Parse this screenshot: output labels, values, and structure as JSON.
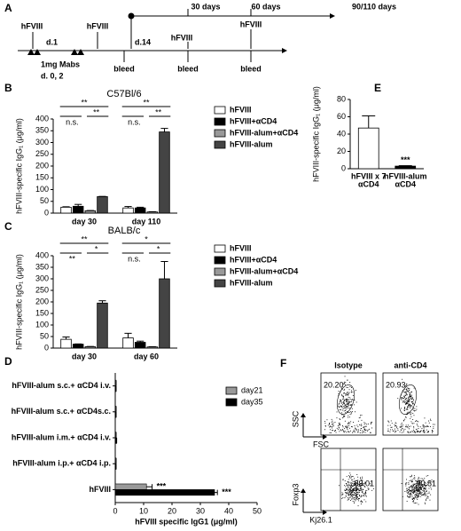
{
  "panel_labels": [
    "A",
    "B",
    "C",
    "D",
    "E",
    "F"
  ],
  "timeline": {
    "top_labels": [
      "30 days",
      "60 days",
      "90/110 days"
    ],
    "injections": [
      "hFVIII",
      "hFVIII",
      "hFVIII",
      "hFVIII"
    ],
    "days": [
      "d.1",
      "d.14"
    ],
    "mabs": [
      "1mg Mabs",
      "d. 0, 2"
    ],
    "bleeds": [
      "bleed",
      "bleed",
      "bleed"
    ]
  },
  "chart_data": [
    {
      "type": "bar",
      "title": "C57Bl/6",
      "y_label": "hFVIII-specific IgG₁ (μg/ml)",
      "categories": [
        "day 30",
        "day 110"
      ],
      "ylim": [
        0,
        400
      ],
      "yticks": [
        0,
        50,
        100,
        150,
        200,
        250,
        300,
        350,
        400
      ],
      "series": [
        {
          "name": "hFVIII",
          "color": "#ffffff",
          "values": [
            25,
            22
          ],
          "errors": [
            2,
            6
          ]
        },
        {
          "name": "hFVIII+αCD4",
          "color": "#000000",
          "values": [
            29,
            22
          ],
          "errors": [
            8,
            3
          ]
        },
        {
          "name": "hFVIII-alum+αCD4",
          "color": "#999999",
          "values": [
            10,
            5
          ],
          "errors": [
            1,
            1
          ]
        },
        {
          "name": "hFVIII-alum",
          "color": "#444444",
          "values": [
            70,
            345
          ],
          "errors": [
            1,
            15
          ]
        }
      ],
      "significance": [
        [
          "**",
          "n.s.",
          "**"
        ],
        [
          "**",
          "n.s.",
          "**"
        ]
      ]
    },
    {
      "type": "bar",
      "title": "BALB/c",
      "y_label": "hFVIII-specific IgG₁ (μg/ml)",
      "categories": [
        "day 30",
        "day 60"
      ],
      "ylim": [
        0,
        400
      ],
      "yticks": [
        0,
        50,
        100,
        150,
        200,
        250,
        300,
        350,
        400
      ],
      "series": [
        {
          "name": "hFVIII",
          "color": "#ffffff",
          "values": [
            38,
            44
          ],
          "errors": [
            10,
            20
          ]
        },
        {
          "name": "hFVIII+αCD4",
          "color": "#000000",
          "values": [
            17,
            25
          ],
          "errors": [
            1,
            5
          ]
        },
        {
          "name": "hFVIII-alum+αCD4",
          "color": "#999999",
          "values": [
            6,
            5
          ],
          "errors": [
            1,
            1
          ]
        },
        {
          "name": "hFVIII-alum",
          "color": "#444444",
          "values": [
            195,
            300
          ],
          "errors": [
            10,
            75
          ]
        }
      ],
      "significance": [
        [
          "**",
          "**",
          "*"
        ],
        [
          "*",
          "n.s.",
          "*"
        ]
      ]
    },
    {
      "type": "hbar",
      "x_label": "hFVIII specific IgG1 (μg/ml)",
      "categories": [
        "hFVIII-alum s.c.+ αCD4 i.v.",
        "hFVIII-alum s.c.+ αCD4s.c.",
        "hFVIII-alum i.m.+ αCD4 i.v.",
        "hFVIII-alum i.p.+ αCD4 i.p.",
        "hFVIII"
      ],
      "xlim": [
        0,
        50
      ],
      "xticks": [
        0,
        10,
        20,
        30,
        40,
        50
      ],
      "series": [
        {
          "name": "day21",
          "color": "#999999",
          "values": [
            0.3,
            0.3,
            0.3,
            0.3,
            11
          ],
          "errors": [
            0,
            0,
            0,
            0,
            2
          ]
        },
        {
          "name": "day35",
          "color": "#000000",
          "values": [
            0.3,
            0.3,
            0.5,
            0.3,
            35
          ],
          "errors": [
            0,
            0,
            0,
            0,
            1
          ]
        }
      ],
      "significance": [
        "***",
        "***"
      ]
    },
    {
      "type": "bar",
      "y_label": "hFVIII-specific IgG₁ (μg/ml)",
      "categories": [
        [
          "hFVIII x 7",
          "αCD4"
        ],
        [
          "hFVIII-alum",
          "αCD4"
        ]
      ],
      "ylim": [
        0,
        80
      ],
      "yticks": [
        0,
        20,
        40,
        60,
        80
      ],
      "series": [
        {
          "color": "#ffffff",
          "values": [
            47,
            3
          ],
          "errors": [
            14,
            0.5
          ],
          "colors": [
            "#ffffff",
            "#000000"
          ]
        }
      ],
      "annotation": "***"
    }
  ],
  "flow": {
    "columns": [
      "Isotype",
      "anti-CD4"
    ],
    "gate_values": [
      "20.20",
      "20.93"
    ],
    "quadrant_values": [
      "89.01",
      "90.81"
    ],
    "axes": [
      "SSC",
      "FSC",
      "Foxp3",
      "Kj26.1"
    ]
  }
}
